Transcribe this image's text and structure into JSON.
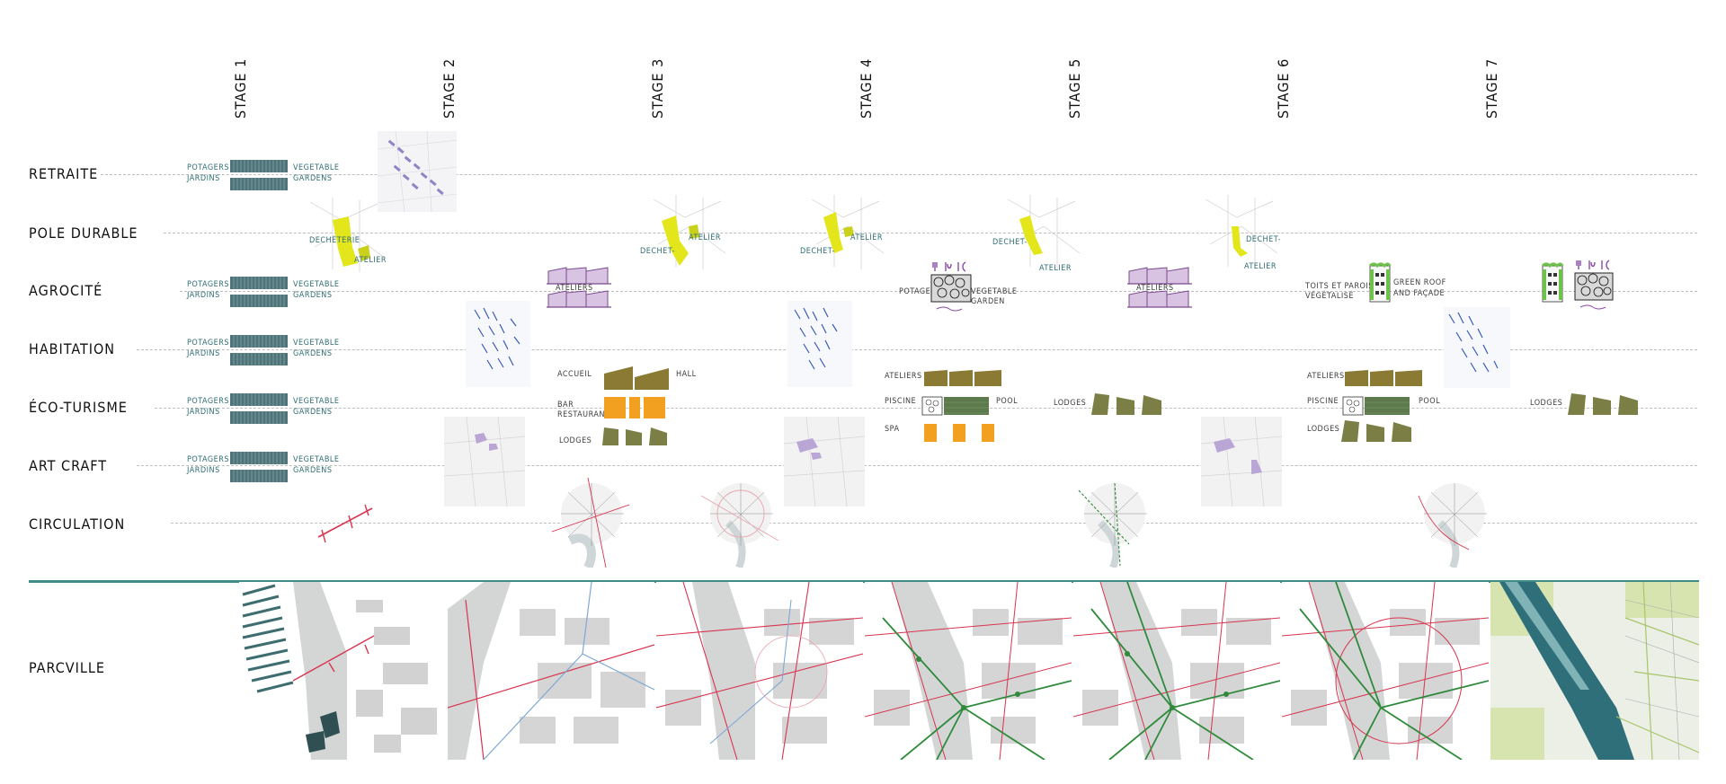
{
  "stages": [
    "STAGE 1",
    "STAGE 2",
    "STAGE 3",
    "STAGE 4",
    "STAGE 5",
    "STAGE 6",
    "STAGE 7"
  ],
  "rows": [
    "RETRAITE",
    "POLE DURABLE",
    "AGROCITÉ",
    "HABITATION",
    "ÉCO-TURISME",
    "ART CRAFT",
    "CIRCULATION"
  ],
  "bottom_row": "PARCVILLE",
  "labels": {
    "potagers": "POTAGERS",
    "jardins": "JARDINS",
    "vegetable": "VEGETABLE",
    "gardens": "GARDENS",
    "decheterie": "DECHETERIE",
    "atelier": "ATELIER",
    "dechet": "DECHET-",
    "ateliers": "ATELIERS",
    "potager": "POTAGER",
    "vegetable_garden_1": "VEGETABLE",
    "vegetable_garden_2": "GARDEN",
    "toits_1": "TOITS ET PAROIS",
    "toits_2": "VÉGÉTALISÉ",
    "green_roof_1": "GREEN ROOF",
    "green_roof_2": "AND FAÇADE",
    "accueil": "ACCUEIL",
    "hall": "HALL",
    "bar": "BAR",
    "restaurant": "RESTAURANT",
    "lodges": "LODGES",
    "piscine": "PISCINE",
    "pool": "POOL",
    "spa": "SPA"
  },
  "colors": {
    "teal": "#3f8c88",
    "garden_block": "#4e7479",
    "yellow": "#e2e61b",
    "purple_fill": "#d9c3e3",
    "purple_line": "#7a4a8c",
    "olive": "#8b7a33",
    "orange": "#f1a11f",
    "lodge_green": "#7b7f45",
    "pool_green": "#5d7a4c",
    "red_route": "#d8344f",
    "green_route": "#2f8a3b",
    "river_blue": "#2e6f7a"
  }
}
